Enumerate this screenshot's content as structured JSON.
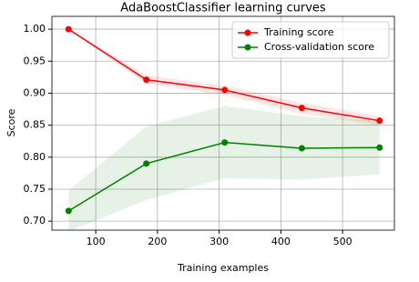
{
  "chart_data": {
    "type": "line",
    "title": "AdaBoostClassifier learning curves",
    "x_label": "Training examples",
    "y_label": "Score",
    "x": [
      56,
      182,
      309,
      434,
      560
    ],
    "series": [
      {
        "name": "Training score",
        "color": "#ff0000",
        "values": [
          1.0,
          0.921,
          0.905,
          0.877,
          0.857
        ],
        "lower": [
          1.0,
          0.915,
          0.897,
          0.868,
          0.85
        ],
        "upper": [
          1.0,
          0.928,
          0.912,
          0.885,
          0.864
        ]
      },
      {
        "name": "Cross-validation score",
        "color": "#008000",
        "values": [
          0.716,
          0.79,
          0.823,
          0.814,
          0.815
        ],
        "lower": [
          0.684,
          0.733,
          0.767,
          0.765,
          0.773
        ],
        "upper": [
          0.748,
          0.848,
          0.88,
          0.864,
          0.857
        ]
      }
    ],
    "xlim": [
      29,
      584
    ],
    "ylim": [
      0.686,
      1.02
    ],
    "xticks": [
      100,
      200,
      300,
      400,
      500
    ],
    "yticks": [
      {
        "value": 0.7,
        "label": "0.70"
      },
      {
        "value": 0.75,
        "label": "0.75"
      },
      {
        "value": 0.8,
        "label": "0.80"
      },
      {
        "value": 0.85,
        "label": "0.85"
      },
      {
        "value": 0.9,
        "label": "0.90"
      },
      {
        "value": 0.95,
        "label": "0.95"
      },
      {
        "value": 1.0,
        "label": "1.00"
      }
    ],
    "grid": true,
    "legend": "upper right"
  }
}
